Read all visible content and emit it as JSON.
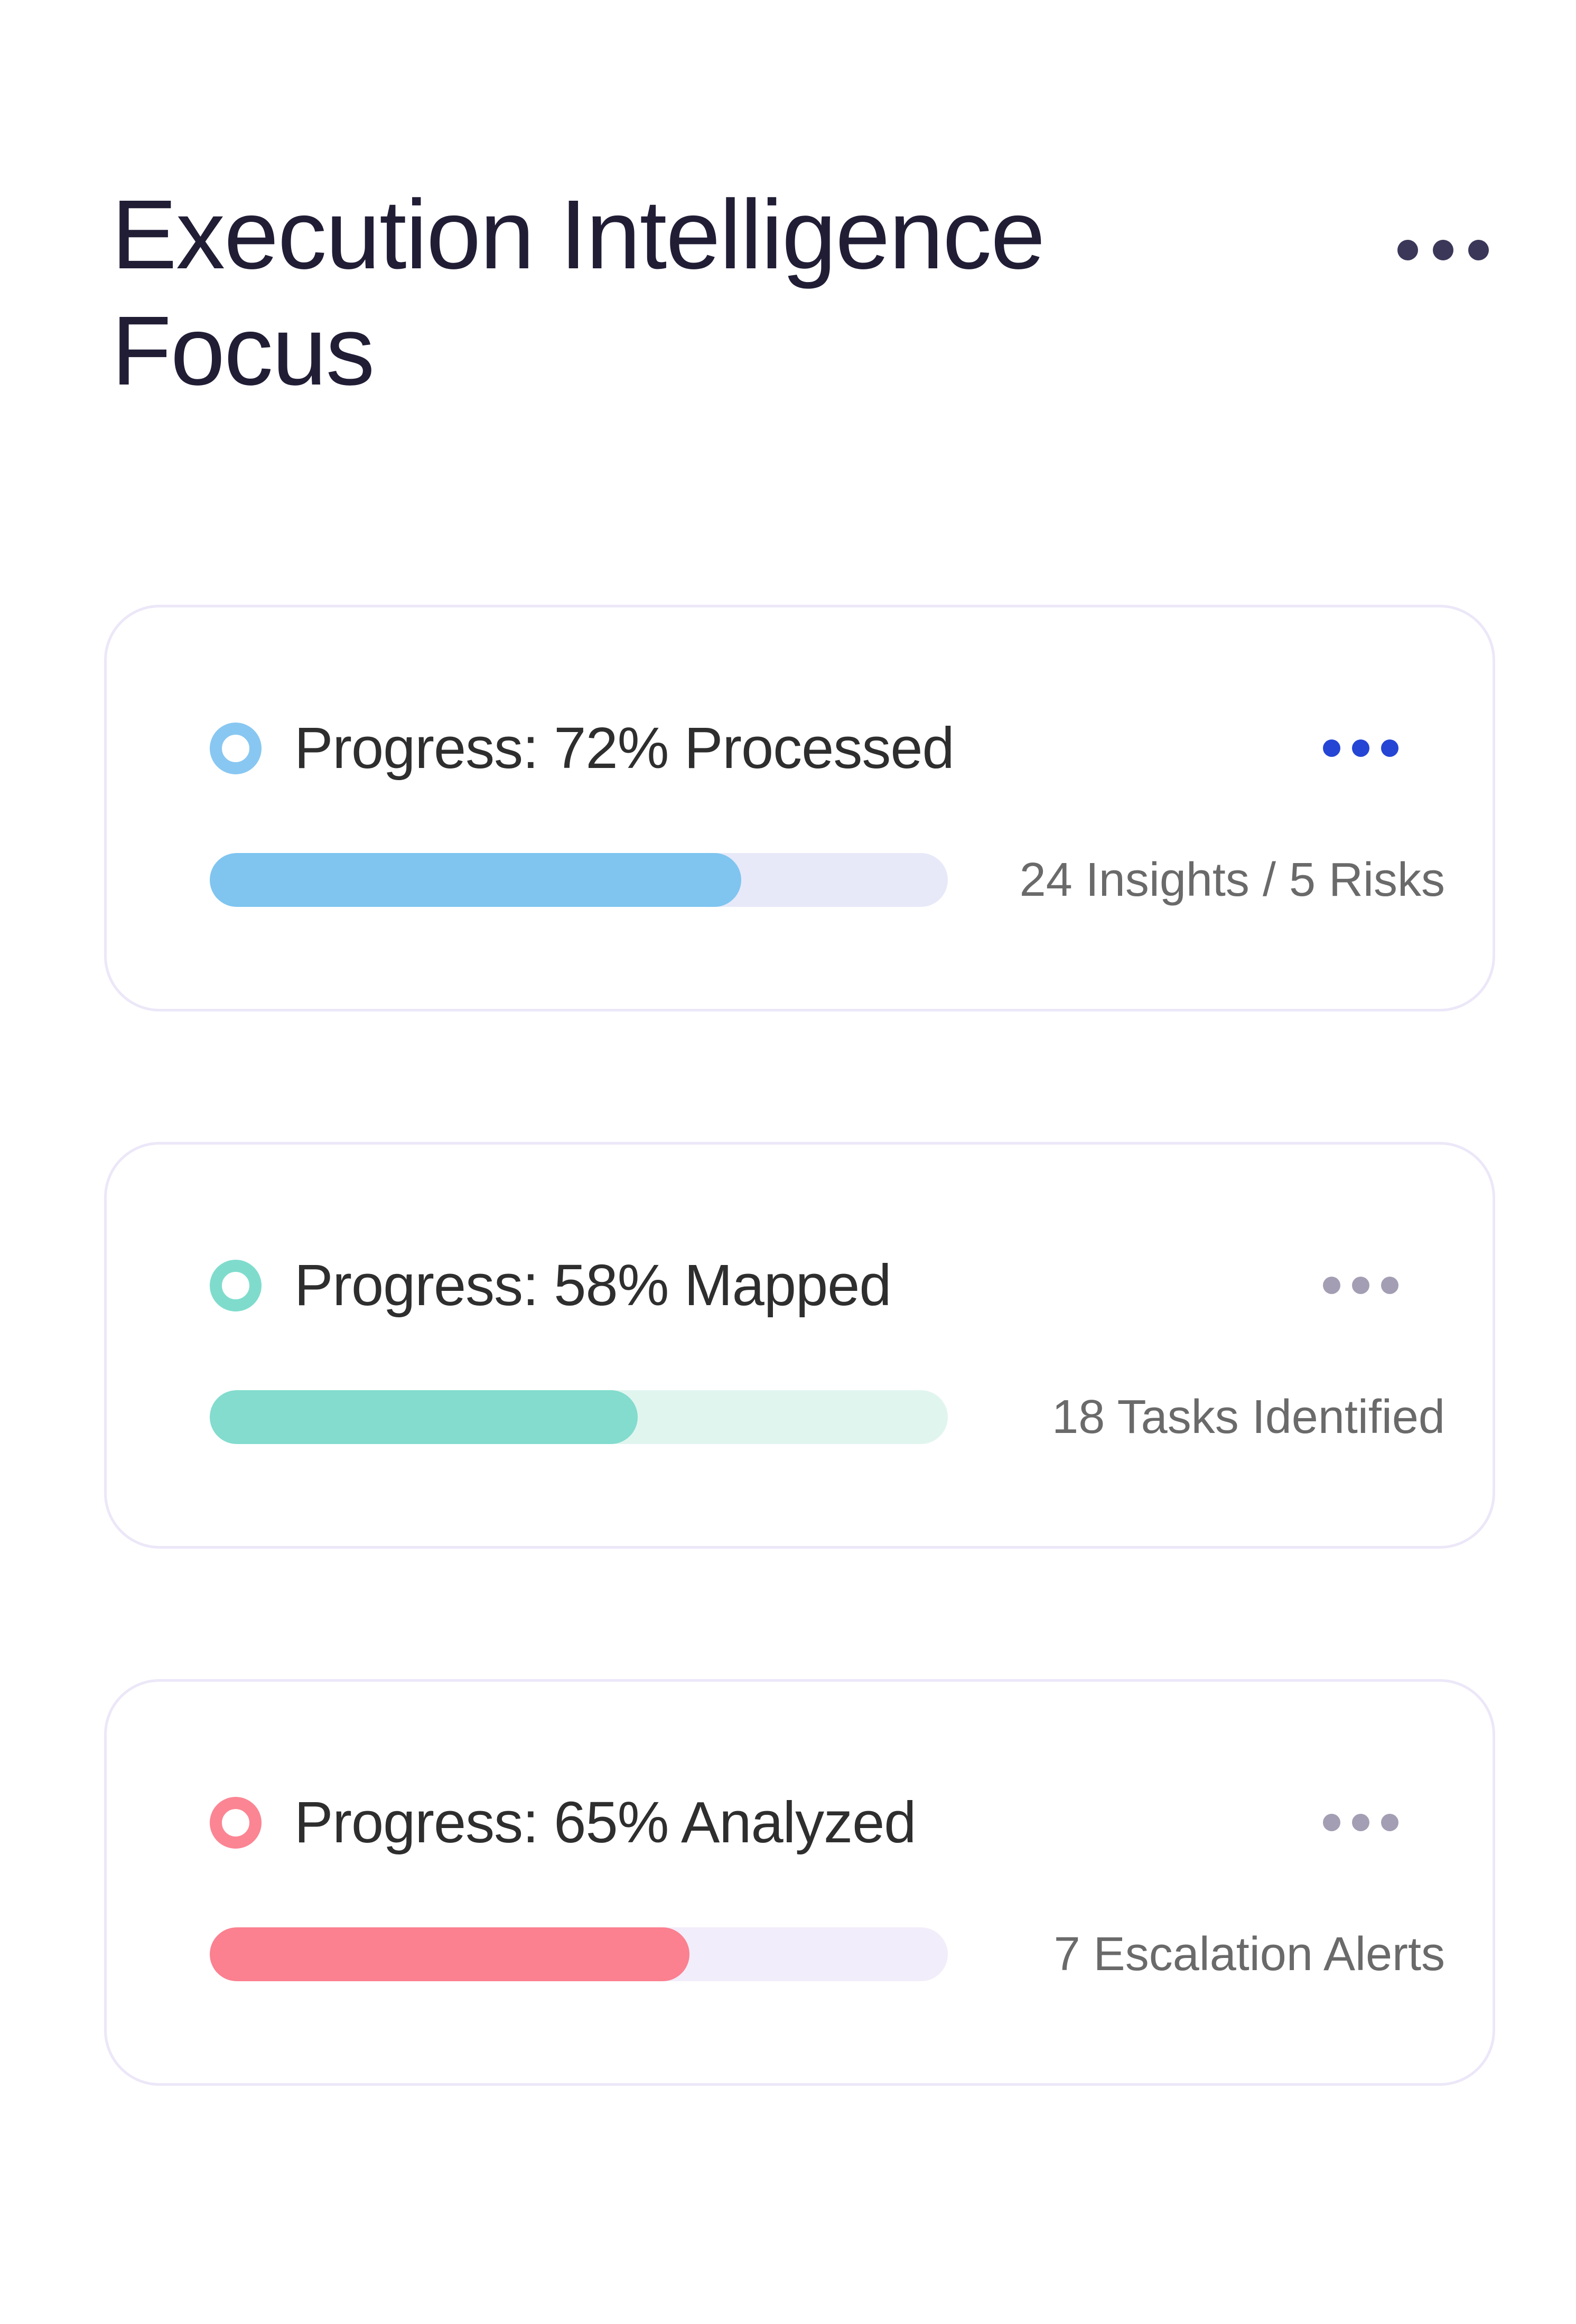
{
  "header": {
    "title": "Execution Intelligence\nFocus",
    "menu_icon": "ellipsis"
  },
  "colors": {
    "background": "#ffffff",
    "title_text": "#201d35",
    "header_dots": "#3b3759",
    "card_border": "#ece7f8",
    "card_title_text": "#2e2e2e",
    "stat_text": "#6a6a6a"
  },
  "cards": [
    {
      "title": "Progress: 72% Processed",
      "percent": 72,
      "stat": "24 Insights / 5 Risks",
      "menu_icon": "ellipsis",
      "ring_icon": "ring",
      "colors": {
        "ring": "#88c7f1",
        "fill": "#7fc5f0",
        "track": "#e7e9f9",
        "dots": "#2545d5"
      }
    },
    {
      "title": "Progress: 58% Mapped",
      "percent": 58,
      "stat": "18 Tasks Identified",
      "menu_icon": "ellipsis",
      "ring_icon": "ring",
      "colors": {
        "ring": "#7fdccd",
        "fill": "#83dcce",
        "track": "#e1f5ef",
        "dots": "#a49eb4"
      }
    },
    {
      "title": "Progress: 65% Analyzed",
      "percent": 65,
      "stat": "7 Escalation Alerts",
      "menu_icon": "ellipsis",
      "ring_icon": "ring",
      "colors": {
        "ring": "#fb8593",
        "fill": "#fb8090",
        "track": "#f2edfa",
        "dots": "#a49eb4"
      }
    }
  ]
}
